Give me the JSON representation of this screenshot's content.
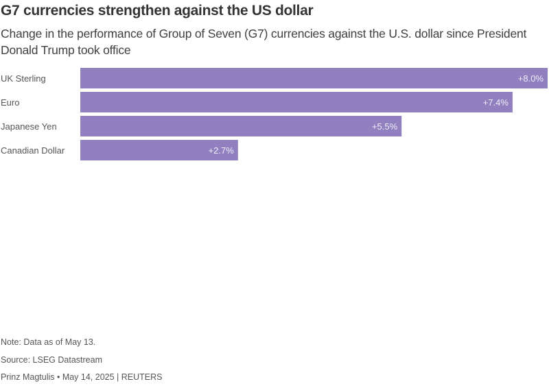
{
  "title": "G7 currencies strengthen against the US dollar",
  "subtitle": "Change in the performance of Group of Seven (G7) currencies against the U.S. dollar since President Donald Trump took office",
  "footer": {
    "note": "Note: Data as of May 13.",
    "source": "Source: LSEG Datastream",
    "byline": "Prinz Magtulis • May 14, 2025 | REUTERS"
  },
  "colors": {
    "bar": "#9080c0"
  },
  "chart_data": {
    "type": "bar",
    "orientation": "horizontal",
    "title": "G7 currencies strengthen against the US dollar",
    "categories": [
      "UK Sterling",
      "Euro",
      "Japanese Yen",
      "Canadian Dollar"
    ],
    "values": [
      8.0,
      7.4,
      5.5,
      2.7
    ],
    "data_labels": [
      "+8.0%",
      "+7.4%",
      "+5.5%",
      "+2.7%"
    ],
    "unit": "%",
    "xlim": [
      0,
      8.0
    ],
    "grid": false,
    "legend": "none"
  }
}
